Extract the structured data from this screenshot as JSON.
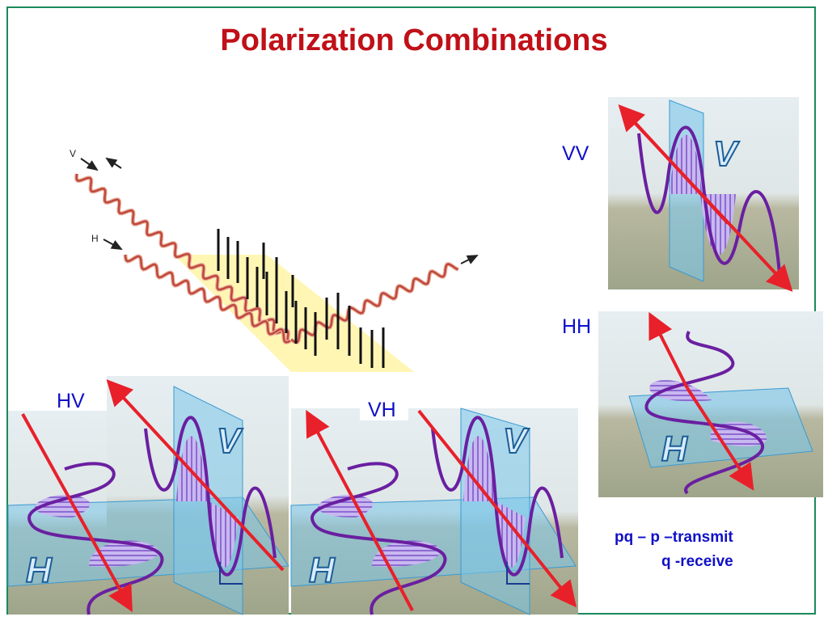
{
  "title": "Polarization Combinations",
  "scatter_diagram": {
    "labels": [
      "V",
      "H"
    ]
  },
  "panels": [
    {
      "label": "VV",
      "plane_labels": [
        "V"
      ]
    },
    {
      "label": "HH",
      "plane_labels": [
        "H"
      ]
    },
    {
      "label": "HV",
      "plane_labels": [
        "H",
        "V"
      ]
    },
    {
      "label": "VH",
      "plane_labels": [
        "H",
        "V"
      ]
    }
  ],
  "note": {
    "lines": [
      "pq – p –transmit",
      "q -receive"
    ]
  }
}
